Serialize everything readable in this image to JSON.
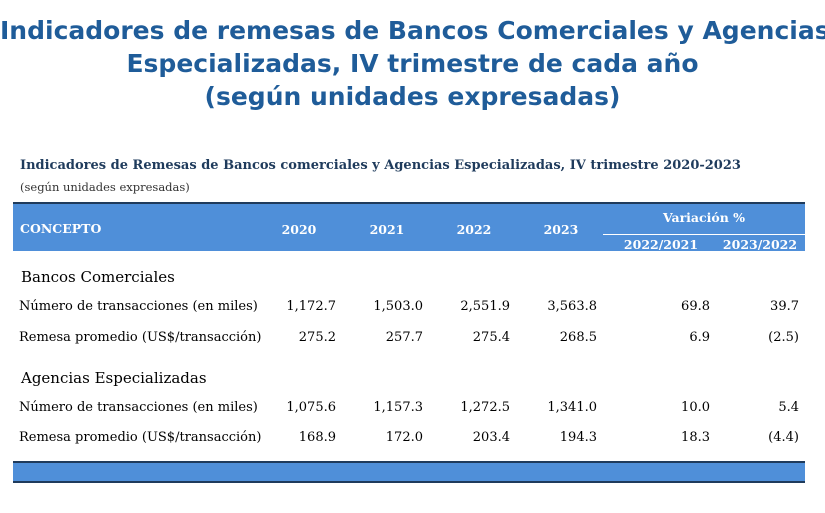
{
  "main_title": {
    "line1": "Indicadores de remesas de Bancos Comerciales y Agencias",
    "line2": "Especializadas, IV trimestre de cada año",
    "line3": "(según unidades expresadas)"
  },
  "table_title": "Indicadores de Remesas de Bancos comerciales y Agencias Especializadas, IV trimestre 2020-2023",
  "table_note": "(según unidades expresadas)",
  "header": {
    "concept": "CONCEPTO",
    "years": [
      "2020",
      "2021",
      "2022",
      "2023"
    ],
    "variation": "Variación %",
    "variation_cols": [
      "2022/2021",
      "2023/2022"
    ]
  },
  "sections": [
    {
      "name": "Bancos Comerciales",
      "rows": [
        {
          "label": "Número de transacciones (en miles)",
          "values": [
            "1,172.7",
            "1,503.0",
            "2,551.9",
            "3,563.8"
          ],
          "var": [
            "69.8",
            "39.7"
          ]
        },
        {
          "label": "Remesa promedio (US$/transacción)",
          "values": [
            "275.2",
            "257.7",
            "275.4",
            "268.5"
          ],
          "var": [
            "6.9",
            "(2.5)"
          ]
        }
      ]
    },
    {
      "name": "Agencias Especializadas",
      "rows": [
        {
          "label": "Número de transacciones (en miles)",
          "values": [
            "1,075.6",
            "1,157.3",
            "1,272.5",
            "1,341.0"
          ],
          "var": [
            "10.0",
            "5.4"
          ]
        },
        {
          "label": "Remesa promedio (US$/transacción)",
          "values": [
            "168.9",
            "172.0",
            "203.4",
            "194.3"
          ],
          "var": [
            "18.3",
            "(4.4)"
          ]
        }
      ]
    }
  ],
  "colors": {
    "title": "#1f5c99",
    "header_bg": "#4f8fd9",
    "border": "#1f3b5c"
  }
}
